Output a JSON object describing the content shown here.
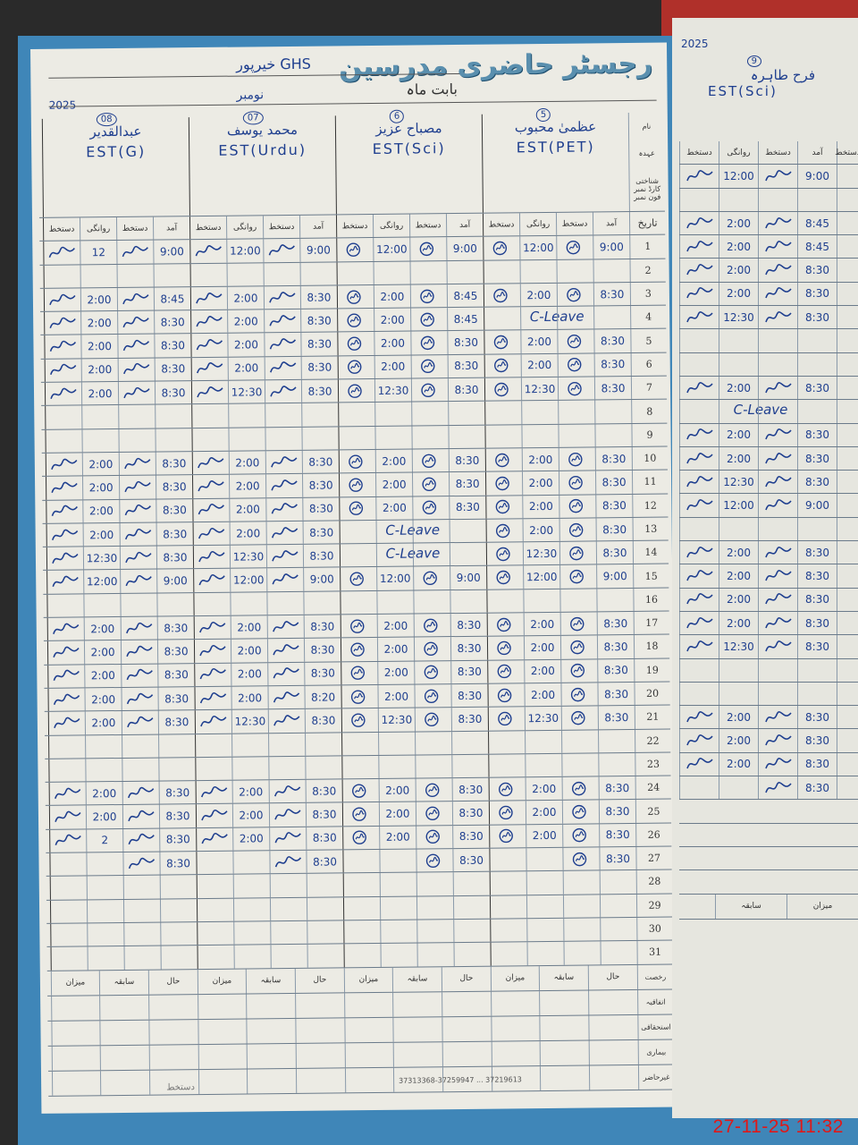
{
  "title": "رجسٹر حاضری مدرسین",
  "school": "GHS خیرپور",
  "month_label": "بابت ماہ",
  "month": "نومبر",
  "year": "2025",
  "row_labels": {
    "name": "نام",
    "designation": "عہدہ",
    "phone": "شناختی کارڈ نمبر فون نمبر",
    "date": "تاریخ"
  },
  "subcolumns": [
    "آمد",
    "دستخط",
    "روانگی",
    "دستخط"
  ],
  "teachers": [
    {
      "no": "5",
      "name": "عظمیٰ محبوب",
      "post": "EST(PET)"
    },
    {
      "no": "6",
      "name": "مصباح عزیز",
      "post": "EST(Sci)"
    },
    {
      "no": "07",
      "name": "محمد یوسف",
      "post": "EST(Urdu)"
    },
    {
      "no": "08",
      "name": "عبدالقدیر",
      "post": "EST(G)"
    }
  ],
  "rows": [
    {
      "date": "1",
      "cells": [
        [
          "9:00",
          "12:00"
        ],
        [
          "9:00",
          "12:00"
        ],
        [
          "9:00",
          "12:00"
        ],
        [
          "9:00",
          "12"
        ]
      ]
    },
    {
      "date": "2",
      "cells": [
        null,
        null,
        null,
        null
      ]
    },
    {
      "date": "3",
      "cells": [
        [
          "8:30",
          "2:00"
        ],
        [
          "8:45",
          "2:00"
        ],
        [
          "8:30",
          "2:00"
        ],
        [
          "8:45",
          "2:00"
        ]
      ]
    },
    {
      "date": "4",
      "cells": [
        {
          "note": "C-Leave"
        },
        [
          "8:45",
          "2:00"
        ],
        [
          "8:30",
          "2:00"
        ],
        [
          "8:30",
          "2:00"
        ]
      ]
    },
    {
      "date": "5",
      "cells": [
        [
          "8:30",
          "2:00"
        ],
        [
          "8:30",
          "2:00"
        ],
        [
          "8:30",
          "2:00"
        ],
        [
          "8:30",
          "2:00"
        ]
      ]
    },
    {
      "date": "6",
      "cells": [
        [
          "8:30",
          "2:00"
        ],
        [
          "8:30",
          "2:00"
        ],
        [
          "8:30",
          "2:00"
        ],
        [
          "8:30",
          "2:00"
        ]
      ]
    },
    {
      "date": "7",
      "cells": [
        [
          "8:30",
          "12:30"
        ],
        [
          "8:30",
          "12:30"
        ],
        [
          "8:30",
          "12:30"
        ],
        [
          "8:30",
          "2:00"
        ]
      ]
    },
    {
      "date": "8",
      "cells": [
        null,
        null,
        null,
        null
      ]
    },
    {
      "date": "9",
      "cells": [
        null,
        null,
        null,
        null
      ]
    },
    {
      "date": "10",
      "cells": [
        [
          "8:30",
          "2:00"
        ],
        [
          "8:30",
          "2:00"
        ],
        [
          "8:30",
          "2:00"
        ],
        [
          "8:30",
          "2:00"
        ]
      ]
    },
    {
      "date": "11",
      "cells": [
        [
          "8:30",
          "2:00"
        ],
        [
          "8:30",
          "2:00"
        ],
        [
          "8:30",
          "2:00"
        ],
        [
          "8:30",
          "2:00"
        ]
      ]
    },
    {
      "date": "12",
      "cells": [
        [
          "8:30",
          "2:00"
        ],
        [
          "8:30",
          "2:00"
        ],
        [
          "8:30",
          "2:00"
        ],
        [
          "8:30",
          "2:00"
        ]
      ]
    },
    {
      "date": "13",
      "cells": [
        [
          "8:30",
          "2:00"
        ],
        {
          "note": "C-Leave"
        },
        [
          "8:30",
          "2:00"
        ],
        [
          "8:30",
          "2:00"
        ]
      ]
    },
    {
      "date": "14",
      "cells": [
        [
          "8:30",
          "12:30"
        ],
        {
          "note": "C-Leave"
        },
        [
          "8:30",
          "12:30"
        ],
        [
          "8:30",
          "12:30"
        ]
      ]
    },
    {
      "date": "15",
      "cells": [
        [
          "9:00",
          "12:00"
        ],
        [
          "9:00",
          "12:00"
        ],
        [
          "9:00",
          "12:00"
        ],
        [
          "9:00",
          "12:00"
        ]
      ]
    },
    {
      "date": "16",
      "cells": [
        null,
        null,
        null,
        null
      ]
    },
    {
      "date": "17",
      "cells": [
        [
          "8:30",
          "2:00"
        ],
        [
          "8:30",
          "2:00"
        ],
        [
          "8:30",
          "2:00"
        ],
        [
          "8:30",
          "2:00"
        ]
      ]
    },
    {
      "date": "18",
      "cells": [
        [
          "8:30",
          "2:00"
        ],
        [
          "8:30",
          "2:00"
        ],
        [
          "8:30",
          "2:00"
        ],
        [
          "8:30",
          "2:00"
        ]
      ]
    },
    {
      "date": "19",
      "cells": [
        [
          "8:30",
          "2:00"
        ],
        [
          "8:30",
          "2:00"
        ],
        [
          "8:30",
          "2:00"
        ],
        [
          "8:30",
          "2:00"
        ]
      ]
    },
    {
      "date": "20",
      "cells": [
        [
          "8:30",
          "2:00"
        ],
        [
          "8:30",
          "2:00"
        ],
        [
          "8:20",
          "2:00"
        ],
        [
          "8:30",
          "2:00"
        ]
      ]
    },
    {
      "date": "21",
      "cells": [
        [
          "8:30",
          "12:30"
        ],
        [
          "8:30",
          "12:30"
        ],
        [
          "8:30",
          "12:30"
        ],
        [
          "8:30",
          "2:00"
        ]
      ]
    },
    {
      "date": "22",
      "cells": [
        null,
        null,
        null,
        null
      ]
    },
    {
      "date": "23",
      "cells": [
        null,
        null,
        null,
        null
      ]
    },
    {
      "date": "24",
      "cells": [
        [
          "8:30",
          "2:00"
        ],
        [
          "8:30",
          "2:00"
        ],
        [
          "8:30",
          "2:00"
        ],
        [
          "8:30",
          "2:00"
        ]
      ]
    },
    {
      "date": "25",
      "cells": [
        [
          "8:30",
          "2:00"
        ],
        [
          "8:30",
          "2:00"
        ],
        [
          "8:30",
          "2:00"
        ],
        [
          "8:30",
          "2:00"
        ]
      ]
    },
    {
      "date": "26",
      "cells": [
        [
          "8:30",
          "2:00"
        ],
        [
          "8:30",
          "2:00"
        ],
        [
          "8:30",
          "2:00"
        ],
        [
          "8:30",
          "2"
        ]
      ]
    },
    {
      "date": "27",
      "cells": [
        [
          "8:30",
          ""
        ],
        [
          "8:30",
          ""
        ],
        [
          "8:30",
          ""
        ],
        [
          "8:30",
          ""
        ]
      ]
    },
    {
      "date": "28",
      "cells": [
        null,
        null,
        null,
        null
      ]
    },
    {
      "date": "29",
      "cells": [
        null,
        null,
        null,
        null
      ]
    },
    {
      "date": "30",
      "cells": [
        null,
        null,
        null,
        null
      ]
    },
    {
      "date": "31",
      "cells": [
        null,
        null,
        null,
        null
      ]
    }
  ],
  "footer": {
    "columns": [
      "حال",
      "سابقہ",
      "میزان"
    ],
    "row_labels": [
      "رخصت",
      "اتفاقیہ",
      "استحقاقی",
      "بیماری",
      "غیرحاضر"
    ]
  },
  "printer_line": "37219613 ... 37313368-37259947",
  "right_page": {
    "year": "2025",
    "teacher": {
      "no": "9",
      "name": "فرح طاہرہ",
      "post": "EST(Sci)"
    },
    "subcolumns": [
      "آمد",
      "دستخط",
      "روانگی",
      "دستخط"
    ],
    "rows": [
      {
        "date": "1",
        "cells": [
          "9:00",
          "12:00"
        ]
      },
      {
        "date": "2",
        "cells": null
      },
      {
        "date": "3",
        "cells": [
          "8:45",
          "2:00"
        ]
      },
      {
        "date": "4",
        "cells": [
          "8:45",
          "2:00"
        ]
      },
      {
        "date": "5",
        "cells": [
          "8:30",
          "2:00"
        ]
      },
      {
        "date": "6",
        "cells": [
          "8:30",
          "2:00"
        ]
      },
      {
        "date": "7",
        "cells": [
          "8:30",
          "12:30"
        ]
      },
      {
        "date": "8",
        "cells": null
      },
      {
        "date": "9",
        "cells": null
      },
      {
        "date": "10",
        "cells": [
          "8:30",
          "2:00"
        ]
      },
      {
        "date": "11",
        "cells": {
          "note": "C-Leave"
        }
      },
      {
        "date": "12",
        "cells": [
          "8:30",
          "2:00"
        ]
      },
      {
        "date": "13",
        "cells": [
          "8:30",
          "2:00"
        ]
      },
      {
        "date": "14",
        "cells": [
          "8:30",
          "12:30"
        ]
      },
      {
        "date": "15",
        "cells": [
          "9:00",
          "12:00"
        ]
      },
      {
        "date": "16",
        "cells": null
      },
      {
        "date": "17",
        "cells": [
          "8:30",
          "2:00"
        ]
      },
      {
        "date": "18",
        "cells": [
          "8:30",
          "2:00"
        ]
      },
      {
        "date": "19",
        "cells": [
          "8:30",
          "2:00"
        ]
      },
      {
        "date": "20",
        "cells": [
          "8:30",
          "2:00"
        ]
      },
      {
        "date": "21",
        "cells": [
          "8:30",
          "12:30"
        ]
      },
      {
        "date": "22",
        "cells": null
      },
      {
        "date": "23",
        "cells": null
      },
      {
        "date": "24",
        "cells": [
          "8:30",
          "2:00"
        ]
      },
      {
        "date": "25",
        "cells": [
          "8:30",
          "2:00"
        ]
      },
      {
        "date": "26",
        "cells": [
          "8:30",
          "2:00"
        ]
      },
      {
        "date": "27",
        "cells": [
          "8:30",
          ""
        ]
      }
    ],
    "footer_columns": [
      "میزان",
      "سابقہ"
    ]
  },
  "timestamp": "27-11-25  11:32",
  "colors": {
    "ink": "#1f3f8f",
    "paper": "#ecebe4",
    "cover": "#3f86b8",
    "stamp": "#e01818"
  }
}
